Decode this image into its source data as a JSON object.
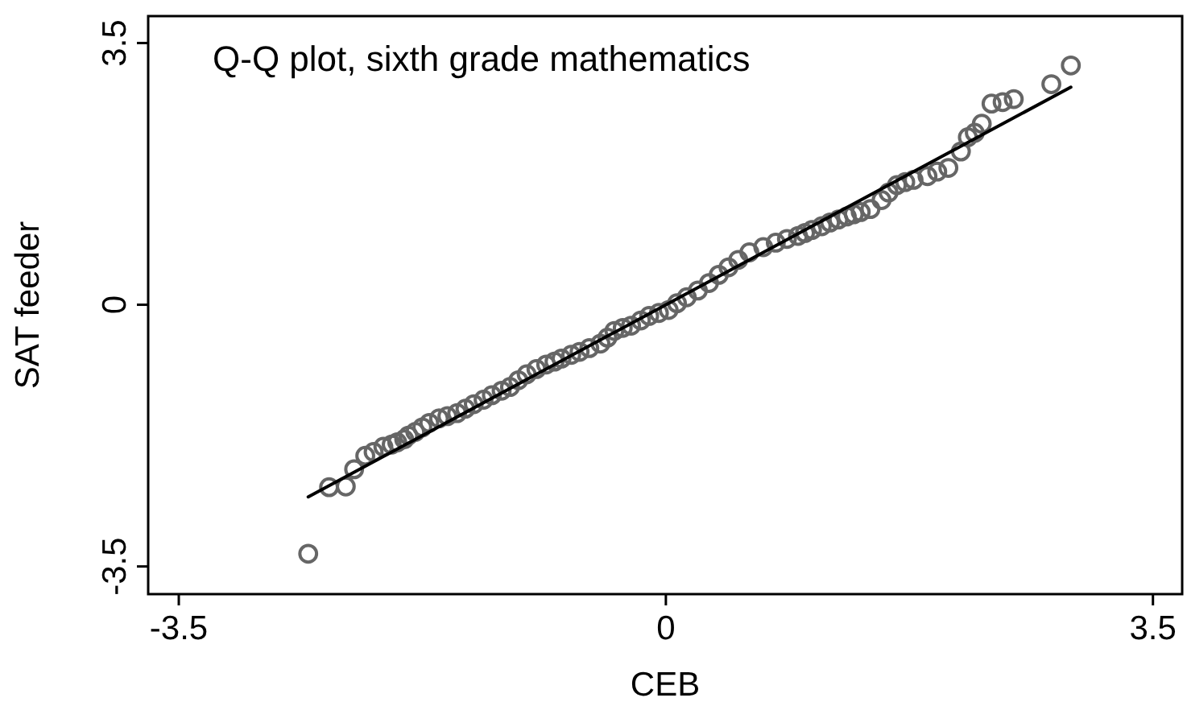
{
  "chart_data": {
    "type": "scatter",
    "title": "Q-Q plot, sixth grade mathematics",
    "xlabel": "CEB",
    "ylabel": "SAT feeder",
    "xlim": [
      -3.72,
      3.71
    ],
    "ylim": [
      -3.87,
      3.86
    ],
    "xticks": [
      -3.5,
      0,
      3.5
    ],
    "yticks": [
      -3.5,
      0,
      3.5
    ],
    "grid": false,
    "series": [
      {
        "color": "#666666",
        "marker": "circle",
        "x": [
          -2.57,
          -2.42,
          -2.3,
          -2.24,
          -2.16,
          -2.1,
          -2.03,
          -1.97,
          -1.93,
          -1.88,
          -1.85,
          -1.8,
          -1.75,
          -1.7,
          -1.63,
          -1.57,
          -1.5,
          -1.44,
          -1.38,
          -1.31,
          -1.25,
          -1.18,
          -1.12,
          -1.06,
          -1.0,
          -0.93,
          -0.86,
          -0.8,
          -0.75,
          -0.68,
          -0.62,
          -0.55,
          -0.47,
          -0.42,
          -0.37,
          -0.31,
          -0.25,
          -0.18,
          -0.12,
          -0.05,
          0.02,
          0.08,
          0.15,
          0.23,
          0.31,
          0.38,
          0.45,
          0.52,
          0.6,
          0.7,
          0.79,
          0.87,
          0.95,
          1.0,
          1.05,
          1.12,
          1.18,
          1.24,
          1.3,
          1.35,
          1.4,
          1.47,
          1.55,
          1.6,
          1.66,
          1.72,
          1.78,
          1.88,
          1.95,
          2.03,
          2.12,
          2.17,
          2.22,
          2.27,
          2.34,
          2.42,
          2.5,
          2.77,
          2.91
        ],
        "values": [
          -3.33,
          -2.44,
          -2.43,
          -2.2,
          -2.02,
          -1.97,
          -1.9,
          -1.87,
          -1.84,
          -1.8,
          -1.75,
          -1.7,
          -1.64,
          -1.58,
          -1.52,
          -1.49,
          -1.45,
          -1.39,
          -1.33,
          -1.27,
          -1.21,
          -1.15,
          -1.1,
          -1.01,
          -0.93,
          -0.86,
          -0.8,
          -0.76,
          -0.72,
          -0.67,
          -0.63,
          -0.58,
          -0.52,
          -0.44,
          -0.35,
          -0.31,
          -0.28,
          -0.21,
          -0.15,
          -0.11,
          -0.07,
          0.02,
          0.1,
          0.19,
          0.29,
          0.4,
          0.5,
          0.6,
          0.7,
          0.77,
          0.83,
          0.88,
          0.92,
          0.96,
          1.0,
          1.05,
          1.1,
          1.14,
          1.18,
          1.21,
          1.24,
          1.28,
          1.4,
          1.5,
          1.6,
          1.64,
          1.67,
          1.72,
          1.78,
          1.83,
          2.05,
          2.24,
          2.3,
          2.42,
          2.69,
          2.71,
          2.75,
          2.95,
          3.2
        ]
      },
      {
        "type": "line",
        "color": "#000000",
        "marker": "none",
        "line_style": "solid",
        "x": [
          -2.57,
          2.91
        ],
        "values": [
          -2.57,
          2.91
        ]
      }
    ]
  }
}
